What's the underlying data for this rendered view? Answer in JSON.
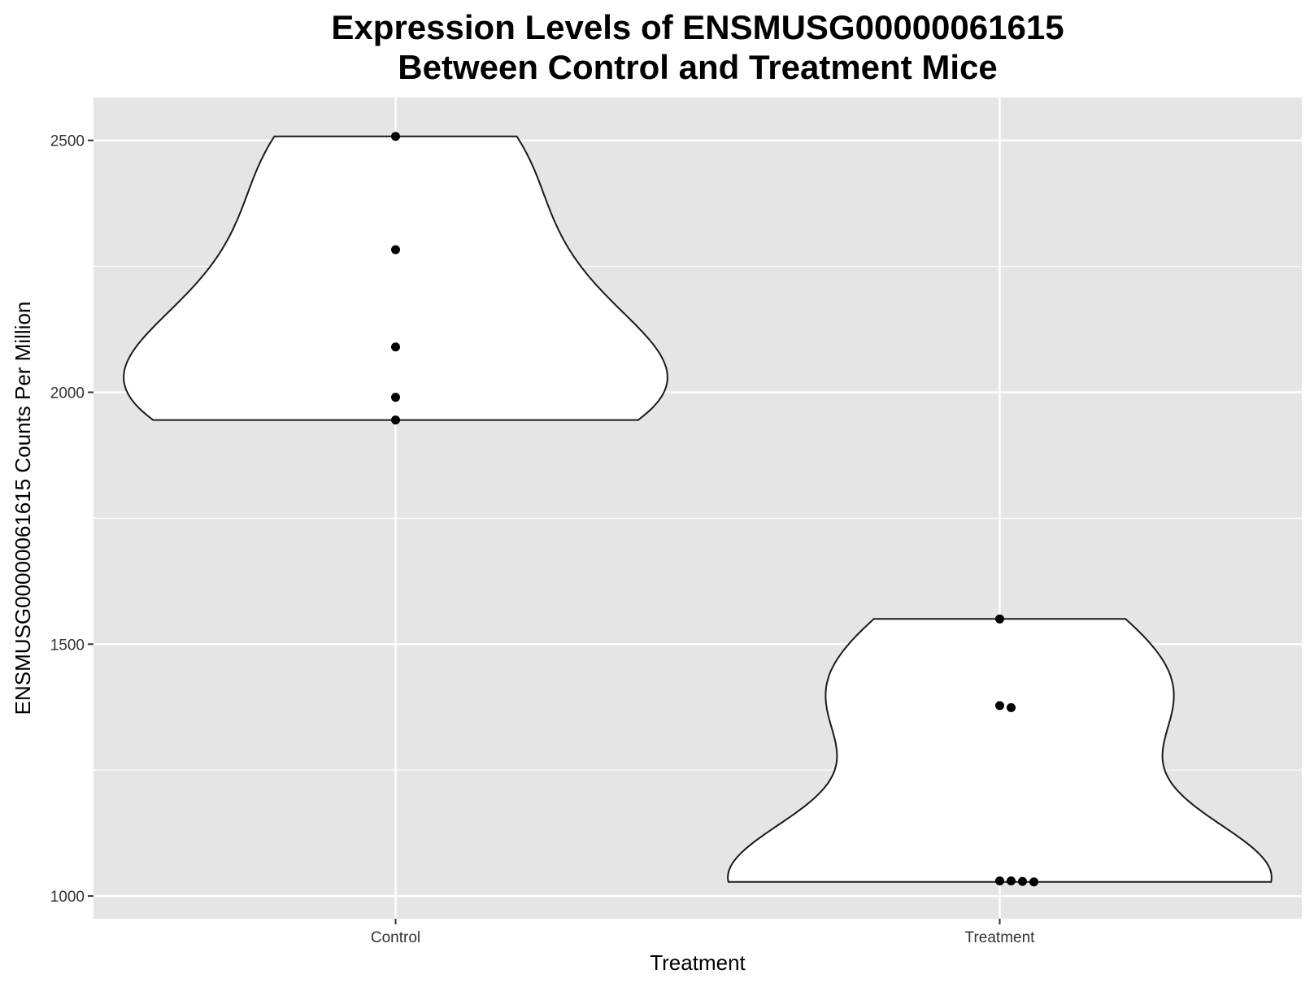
{
  "chart_data": {
    "type": "violin",
    "title": [
      "Expression Levels of ENSMUSG00000061615",
      "Between Control and Treatment Mice"
    ],
    "xlabel": "Treatment",
    "ylabel": "ENSMUSG00000061615 Counts Per Million",
    "categories": [
      "Control",
      "Treatment"
    ],
    "yticks": [
      1000,
      1500,
      2000,
      2500
    ],
    "ylim": [
      955,
      2585
    ],
    "grid": true,
    "legend": "none",
    "colors": {
      "panel_background": "#e5e5e5",
      "grid": "#ffffff",
      "violin_fill": "#ffffff",
      "violin_stroke": "#1a1a1a",
      "points": "#000000"
    },
    "points": [
      {
        "category": "Control",
        "values": [
          2508,
          2283,
          2090,
          1990,
          1945
        ]
      },
      {
        "category": "Treatment",
        "values": [
          1550,
          1378,
          1374,
          1030,
          1030,
          1029,
          1028
        ]
      }
    ]
  }
}
